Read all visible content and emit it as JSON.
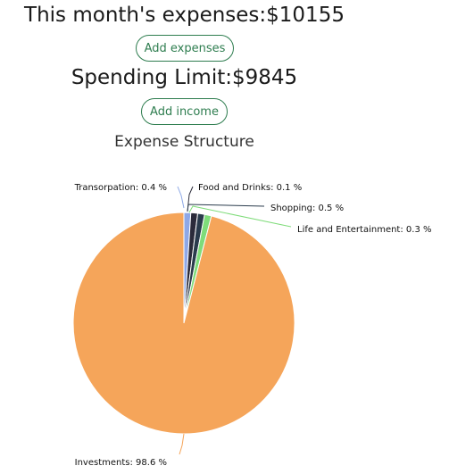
{
  "summary": {
    "expenses_text": "This month's expenses:$10155",
    "add_expenses_label": "Add expenses",
    "limit_text": "Spending Limit:$9845",
    "add_income_label": "Add income"
  },
  "colors": {
    "button_accent": "#2e7d4f",
    "investments": "#f5a55a",
    "transportation": "#8ea8e6",
    "food_and_drinks": "#2b2b3a",
    "shopping": "#2a3b4c",
    "life_and_entertainment": "#7fdc7a"
  },
  "chart_data": {
    "type": "pie",
    "title": "Expense Structure",
    "slices": [
      {
        "name": "Investments",
        "value": 98.6,
        "label": "Investments: 98.6 %",
        "color": "#f5a55a"
      },
      {
        "name": "Transorpation",
        "value": 0.4,
        "label": "Transorpation: 0.4 %",
        "color": "#8ea8e6"
      },
      {
        "name": "Food and Drinks",
        "value": 0.1,
        "label": "Food and Drinks: 0.1 %",
        "color": "#2b2b3a"
      },
      {
        "name": "Shopping",
        "value": 0.5,
        "label": "Shopping: 0.5 %",
        "color": "#2a3b4c"
      },
      {
        "name": "Life and Entertainment",
        "value": 0.3,
        "label": "Life and Entertainment: 0.3 %",
        "color": "#7fdc7a"
      }
    ]
  }
}
